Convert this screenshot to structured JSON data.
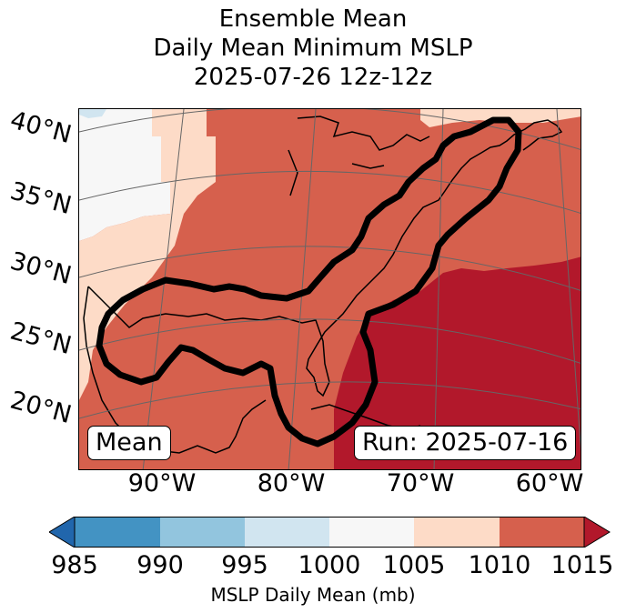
{
  "title": {
    "line1": "Ensemble Mean",
    "line2": "Daily Mean Minimum MSLP",
    "line3": "2025-07-26 12z-12z"
  },
  "map": {
    "lat_labels": [
      "40°N",
      "35°N",
      "30°N",
      "25°N",
      "20°N"
    ],
    "lon_labels": [
      "90°W",
      "80°W",
      "70°W",
      "60°W"
    ],
    "badge_left": "Mean",
    "badge_right": "Run: 2025-07-16",
    "colors": {
      "lt1000": "#d1e5f0",
      "r1000": "#f7f7f7",
      "r1005": "#fddbc7",
      "r1010": "#d6604d",
      "r1015": "#b2182b"
    }
  },
  "colorbar": {
    "ticks": [
      "985",
      "990",
      "995",
      "1000",
      "1005",
      "1010",
      "1015"
    ],
    "label": "MSLP Daily Mean (mb)",
    "colors": [
      "#2166ac",
      "#4393c3",
      "#92c5de",
      "#d1e5f0",
      "#f7f7f7",
      "#fddbc7",
      "#d6604d",
      "#b2182b"
    ]
  }
}
